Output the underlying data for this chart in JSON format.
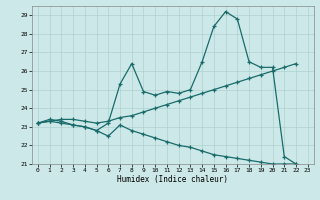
{
  "title": "",
  "xlabel": "Humidex (Indice chaleur)",
  "ylabel": "",
  "xlim": [
    -0.5,
    23.5
  ],
  "ylim": [
    21,
    29.5
  ],
  "yticks": [
    21,
    22,
    23,
    24,
    25,
    26,
    27,
    28,
    29
  ],
  "xticks": [
    0,
    1,
    2,
    3,
    4,
    5,
    6,
    7,
    8,
    9,
    10,
    11,
    12,
    13,
    14,
    15,
    16,
    17,
    18,
    19,
    20,
    21,
    22,
    23
  ],
  "background_color": "#cde8e8",
  "grid_color": "#a8cccc",
  "line_color": "#1a6b6b",
  "line1_x": [
    0,
    1,
    2,
    3,
    4,
    5,
    6,
    7,
    8,
    9,
    10,
    11,
    12,
    13,
    14,
    15,
    16,
    17,
    18,
    19,
    20,
    21,
    22
  ],
  "line1_y": [
    23.2,
    23.4,
    23.3,
    23.1,
    23.0,
    22.8,
    23.2,
    25.3,
    26.4,
    24.9,
    24.7,
    24.9,
    24.8,
    25.0,
    26.5,
    28.4,
    29.2,
    28.8,
    26.5,
    26.2,
    26.2,
    21.4,
    21.0
  ],
  "line2_x": [
    0,
    1,
    2,
    3,
    4,
    5,
    6,
    7,
    8,
    9,
    10,
    11,
    12,
    13,
    14,
    15,
    16,
    17,
    18,
    19,
    20,
    21,
    22
  ],
  "line2_y": [
    23.2,
    23.3,
    23.4,
    23.4,
    23.3,
    23.2,
    23.3,
    23.5,
    23.6,
    23.8,
    24.0,
    24.2,
    24.4,
    24.6,
    24.8,
    25.0,
    25.2,
    25.4,
    25.6,
    25.8,
    26.0,
    26.2,
    26.4
  ],
  "line3_x": [
    0,
    1,
    2,
    3,
    4,
    5,
    6,
    7,
    8,
    9,
    10,
    11,
    12,
    13,
    14,
    15,
    16,
    17,
    18,
    19,
    20,
    21,
    22
  ],
  "line3_y": [
    23.2,
    23.3,
    23.2,
    23.1,
    23.0,
    22.8,
    22.5,
    23.1,
    22.8,
    22.6,
    22.4,
    22.2,
    22.0,
    21.9,
    21.7,
    21.5,
    21.4,
    21.3,
    21.2,
    21.1,
    21.0,
    21.0,
    21.0
  ]
}
